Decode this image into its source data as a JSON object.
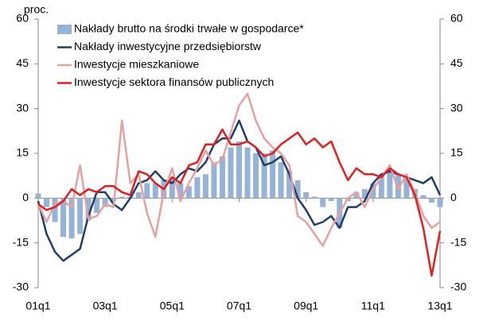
{
  "chart_data": {
    "type": "bar-line",
    "y_label": "proc.",
    "categories": [
      "01q1",
      null,
      null,
      null,
      null,
      null,
      null,
      null,
      "03q1",
      null,
      null,
      null,
      null,
      null,
      null,
      null,
      "05q1",
      null,
      null,
      null,
      null,
      null,
      null,
      null,
      "07q1",
      null,
      null,
      null,
      null,
      null,
      null,
      null,
      "09q1",
      null,
      null,
      null,
      null,
      null,
      null,
      null,
      "11q1",
      null,
      null,
      null,
      null,
      null,
      null,
      null,
      "13q1"
    ],
    "ylim": [
      -30,
      60
    ],
    "yticks": [
      -30,
      -15,
      0,
      15,
      30,
      45,
      60
    ],
    "y2lim": [
      -30,
      60
    ],
    "y2ticks": [
      -30,
      -15,
      0,
      15,
      30,
      45,
      60
    ],
    "legend": "top-left",
    "series": [
      {
        "name": "Nakłady brutto na środki trwałe w gospodarce*",
        "type": "bar",
        "color": "#95b3d7",
        "values": [
          1.5,
          -3,
          -8,
          -13,
          -13.5,
          -12,
          -7.5,
          -5,
          -3,
          -1,
          0.5,
          0.5,
          2,
          5,
          5,
          6,
          7,
          5,
          4,
          7,
          8,
          12,
          14,
          17,
          19,
          17,
          15,
          15,
          16,
          12,
          9,
          6,
          2,
          0.5,
          -3,
          -1,
          -10,
          -1,
          2,
          3,
          5,
          8,
          10,
          8,
          6.5,
          3,
          1,
          -1.5,
          -3
        ]
      },
      {
        "name": "Nakłady inwestycyjne przedsiębiorstw",
        "type": "line",
        "color": "#1f3d6e",
        "values": [
          -1,
          -12,
          -18,
          -21,
          -19,
          -17,
          -6,
          2,
          2,
          -2,
          -4,
          0,
          5,
          6,
          9,
          6,
          5,
          8,
          10,
          9,
          12,
          18,
          20,
          20,
          26,
          19,
          17,
          11,
          12,
          14,
          8,
          0,
          -4,
          -9,
          -8,
          -6,
          -10,
          -3,
          -3,
          -1,
          5,
          8,
          9,
          8,
          7,
          6,
          5,
          7,
          1
        ]
      },
      {
        "name": "Inwestycje mieszkaniowe",
        "type": "line",
        "color": "#e6a0a0",
        "values": [
          -2,
          -8,
          -2,
          -1,
          -3,
          11,
          -7,
          -6,
          -2,
          -3,
          26,
          5,
          8,
          -5,
          -13,
          2,
          10,
          -1,
          5,
          10,
          16,
          11,
          13,
          22,
          31,
          35,
          26,
          20,
          17,
          15,
          11,
          -6,
          -8,
          -12,
          -16,
          -10,
          -5,
          0,
          2,
          -3,
          3,
          7,
          11,
          3,
          8,
          2,
          -6,
          -10,
          -8
        ]
      },
      {
        "name": "Inwestycje sektora finansów publicznych",
        "type": "line",
        "color": "#e0201f",
        "values": [
          -2,
          -4,
          -3,
          -1,
          3,
          1,
          3,
          2,
          4,
          4,
          2,
          1,
          9,
          8,
          5,
          3,
          7,
          5,
          11,
          12,
          18,
          18,
          23,
          18,
          18,
          19,
          17,
          14,
          15,
          18,
          20,
          22,
          18,
          20,
          17,
          19,
          12,
          6,
          10,
          8,
          8,
          7,
          10,
          8,
          7,
          1,
          -10,
          -26,
          -11
        ]
      }
    ]
  }
}
